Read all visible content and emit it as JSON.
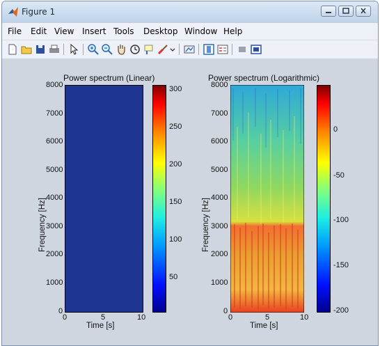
{
  "window": {
    "title": "Figure 1"
  },
  "menu": [
    "File",
    "Edit",
    "View",
    "Insert",
    "Tools",
    "Desktop",
    "Window",
    "Help"
  ],
  "toolbar_icons": [
    "new-figure",
    "open-file",
    "save",
    "print",
    "edit-plot",
    "zoom-in",
    "zoom-out",
    "pan",
    "rotate-3d",
    "data-cursor",
    "brush",
    "brush-dropdown",
    "link-plot",
    "colorbar",
    "legend",
    "hide-plot-tools",
    "show-plot-tools"
  ],
  "plots": [
    {
      "title": "Power spectrum (Linear)",
      "xlabel": "Time [s]",
      "ylabel": "Frequency [Hz]",
      "xticks": [
        "0",
        "5",
        "10"
      ],
      "yticks": [
        "0",
        "1000",
        "2000",
        "3000",
        "4000",
        "5000",
        "6000",
        "7000",
        "8000"
      ],
      "colorbar_ticks": [
        "50",
        "100",
        "150",
        "200",
        "250",
        "300"
      ]
    },
    {
      "title": "Power spectrum (Logarithmic)",
      "xlabel": "Time [s]",
      "ylabel": "Frequency [Hz]",
      "xticks": [
        "0",
        "5",
        "10"
      ],
      "yticks": [
        "0",
        "1000",
        "2000",
        "3000",
        "4000",
        "5000",
        "6000",
        "7000",
        "8000"
      ],
      "colorbar_ticks": [
        "0",
        "-50",
        "-100",
        "-150",
        "-200"
      ]
    }
  ],
  "colors": {
    "low": "#1a2f8f",
    "high": "#8a0d0d"
  }
}
